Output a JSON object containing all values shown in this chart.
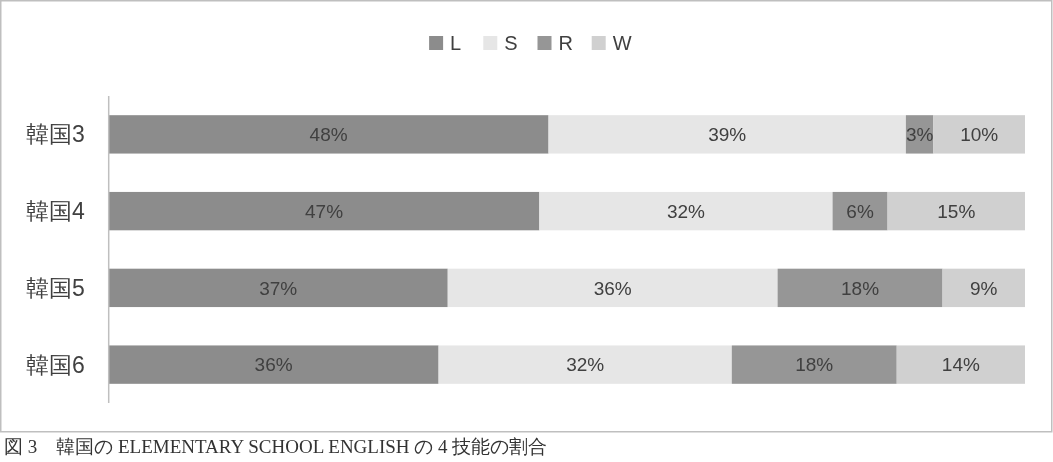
{
  "chart_data": {
    "type": "bar",
    "orientation": "horizontal",
    "stacked": true,
    "categories": [
      "韓国3",
      "韓国4",
      "韓国5",
      "韓国6"
    ],
    "series": [
      {
        "name": "L",
        "color": "#8c8c8c",
        "values": [
          48,
          47,
          37,
          36
        ],
        "value_labels": [
          "48%",
          "47%",
          "37%",
          "36%"
        ]
      },
      {
        "name": "S",
        "color": "#e6e6e6",
        "values": [
          39,
          32,
          36,
          32
        ],
        "value_labels": [
          "39%",
          "32%",
          "36%",
          "32%"
        ]
      },
      {
        "name": "R",
        "color": "#969696",
        "values": [
          3,
          6,
          18,
          18
        ],
        "value_labels": [
          "3%",
          "6%",
          "18%",
          "18%"
        ]
      },
      {
        "name": "W",
        "color": "#d0d0d0",
        "values": [
          10,
          15,
          9,
          14
        ],
        "value_labels": [
          "10%",
          "15%",
          "9%",
          "14%"
        ]
      }
    ],
    "xlim": [
      0,
      100
    ],
    "tick_labels": "y",
    "legend": "top",
    "annotations": [
      "図 3　韓国の ELEMENTARY SCHOOL ENGLISH の 4 技能の割合"
    ]
  }
}
